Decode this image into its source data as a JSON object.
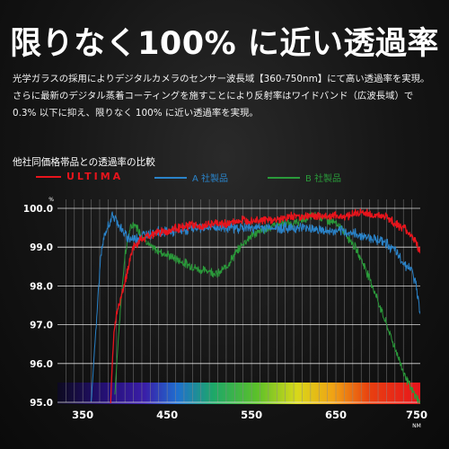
{
  "headline": "限りなく100% に近い透過率",
  "description": [
    "光学ガラスの採用によりデジタルカメラのセンサー波長域【360-750nm】にて高い透過率を実現。",
    "さらに最新のデジタル蒸着コーティングを施すことにより反射率はワイドバンド（広波長域）で",
    "0.3% 以下に抑え、限りなく 100% に近い透過率を実現。"
  ],
  "chart_title": "他社同価格帯品との透過率の比較",
  "legend": [
    {
      "label": "ULTIMA",
      "color": "#e8141c"
    },
    {
      "label": "A 社製品",
      "color": "#2a83c9"
    },
    {
      "label": "B 社製品",
      "color": "#2a9a3a"
    }
  ],
  "chart_data": {
    "type": "line",
    "title": "他社同価格帯品との透過率の比較",
    "x_unit": "NM",
    "y_unit": "%",
    "xlim": [
      320,
      750
    ],
    "ylim": [
      95.0,
      100.0
    ],
    "x_ticks": [
      350,
      450,
      550,
      650,
      750
    ],
    "x_tick_labels": [
      "350",
      "450",
      "550",
      "650",
      "750"
    ],
    "y_ticks": [
      95.0,
      96.0,
      97.0,
      98.0,
      99.0,
      100.0
    ],
    "y_tick_labels": [
      "95.0",
      "96.0",
      "97.0",
      "98.0",
      "99.0",
      "100.0"
    ],
    "grid": true,
    "series": [
      {
        "name": "ULTIMA",
        "color": "#e8141c",
        "x": [
          383,
          385,
          387,
          390,
          395,
          400,
          405,
          410,
          420,
          430,
          440,
          450,
          460,
          470,
          480,
          490,
          500,
          520,
          540,
          560,
          580,
          600,
          620,
          640,
          660,
          680,
          700,
          710,
          720,
          730,
          740,
          745,
          750
        ],
        "y": [
          95.0,
          96.0,
          96.8,
          97.3,
          97.7,
          98.1,
          98.6,
          99.0,
          99.2,
          99.3,
          99.4,
          99.4,
          99.5,
          99.5,
          99.6,
          99.5,
          99.6,
          99.6,
          99.7,
          99.7,
          99.7,
          99.8,
          99.8,
          99.8,
          99.8,
          99.9,
          99.8,
          99.8,
          99.6,
          99.5,
          99.3,
          99.1,
          98.9
        ]
      },
      {
        "name": "A 社製品",
        "color": "#2a83c9",
        "x": [
          360,
          362,
          364,
          366,
          368,
          370,
          372,
          375,
          378,
          381,
          385,
          390,
          395,
          400,
          410,
          420,
          440,
          460,
          480,
          500,
          520,
          540,
          560,
          580,
          600,
          620,
          640,
          660,
          680,
          700,
          710,
          720,
          730,
          740,
          745,
          750
        ],
        "y": [
          95.0,
          95.7,
          96.4,
          97.0,
          97.7,
          98.4,
          98.9,
          99.2,
          99.4,
          99.6,
          99.8,
          99.7,
          99.5,
          99.3,
          99.2,
          99.3,
          99.4,
          99.4,
          99.5,
          99.5,
          99.5,
          99.5,
          99.5,
          99.5,
          99.5,
          99.5,
          99.4,
          99.4,
          99.3,
          99.2,
          99.1,
          98.9,
          98.6,
          98.4,
          98.0,
          97.3
        ]
      },
      {
        "name": "B 社製品",
        "color": "#2a9a3a",
        "x": [
          388,
          392,
          396,
          400,
          405,
          410,
          415,
          420,
          425,
          430,
          440,
          450,
          460,
          470,
          480,
          490,
          500,
          510,
          520,
          530,
          540,
          550,
          560,
          570,
          580,
          590,
          600,
          610,
          620,
          630,
          640,
          650,
          660,
          670,
          680,
          690,
          700,
          710,
          720,
          730,
          740,
          750
        ],
        "y": [
          95.2,
          96.6,
          97.8,
          98.8,
          99.4,
          99.6,
          99.5,
          99.3,
          99.2,
          99.0,
          98.9,
          98.8,
          98.7,
          98.6,
          98.5,
          98.4,
          98.4,
          98.3,
          98.5,
          98.8,
          99.1,
          99.3,
          99.4,
          99.5,
          99.6,
          99.6,
          99.6,
          99.7,
          99.8,
          99.8,
          99.7,
          99.6,
          99.4,
          99.1,
          98.7,
          98.2,
          97.6,
          97.0,
          96.4,
          95.8,
          95.3,
          95.0
        ]
      }
    ]
  }
}
